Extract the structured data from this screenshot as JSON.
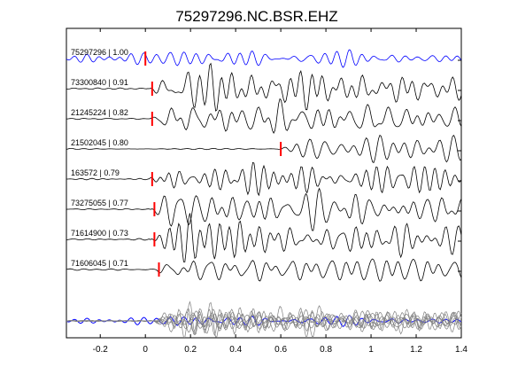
{
  "chart_data": {
    "type": "line",
    "title": "75297296.NC.BSR.EHZ",
    "xlim": [
      -0.35,
      1.4
    ],
    "xticks": [
      "-0.2",
      "0",
      "0.2",
      "0.4",
      "0.6",
      "0.8",
      "1",
      "1.2",
      "1.4"
    ],
    "xtick_values": [
      -0.2,
      0,
      0.2,
      0.4,
      0.6,
      0.8,
      1.0,
      1.2,
      1.4
    ],
    "grid": false,
    "colors": {
      "reference": "#0000ff",
      "trace": "#000000",
      "pick": "#ff0000",
      "stack": "#808080"
    },
    "series": [
      {
        "name": "75297296 | 1.00",
        "pick": 0.0,
        "reference": true
      },
      {
        "name": "73300840 | 0.91",
        "pick": 0.03
      },
      {
        "name": "21245224 | 0.82",
        "pick": 0.03
      },
      {
        "name": "21502045 | 0.80",
        "pick": 0.6
      },
      {
        "name": "163572 | 0.79",
        "pick": 0.03
      },
      {
        "name": "73275055 | 0.77",
        "pick": 0.04
      },
      {
        "name": "71614900 | 0.73",
        "pick": 0.04
      },
      {
        "name": "71606045 | 0.71",
        "pick": 0.06
      }
    ],
    "stack_bottom_trace": true
  }
}
